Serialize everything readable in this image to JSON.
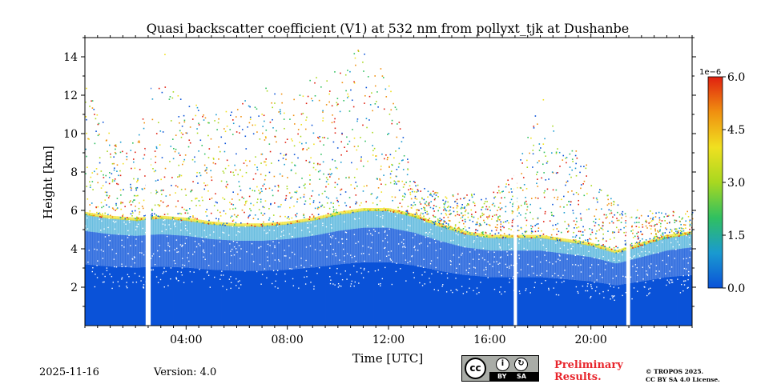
{
  "chart_data": {
    "type": "heatmap",
    "title": "Quasi backscatter coefficient (V1) at 532 nm from pollyxt_tjk at Dushanbe",
    "xlabel": "Time [UTC]",
    "ylabel": "Height [km]",
    "xlim_hours": [
      0,
      24
    ],
    "ylim_km": [
      0,
      15
    ],
    "x_ticks": [
      {
        "hour": 4,
        "label": "04:00"
      },
      {
        "hour": 8,
        "label": "08:00"
      },
      {
        "hour": 12,
        "label": "12:00"
      },
      {
        "hour": 16,
        "label": "16:00"
      },
      {
        "hour": 20,
        "label": "20:00"
      }
    ],
    "y_ticks": [
      {
        "value": 2,
        "label": "2"
      },
      {
        "value": 4,
        "label": "4"
      },
      {
        "value": 6,
        "label": "6"
      },
      {
        "value": 8,
        "label": "8"
      },
      {
        "value": 10,
        "label": "10"
      },
      {
        "value": 12,
        "label": "12"
      },
      {
        "value": 14,
        "label": "14"
      }
    ],
    "colorbar": {
      "multiplier": "1e−6",
      "range": [
        0.0,
        6.0
      ],
      "ticks": [
        {
          "value": 0.0,
          "label": "0.0"
        },
        {
          "value": 1.5,
          "label": "1.5"
        },
        {
          "value": 3.0,
          "label": "3.0"
        },
        {
          "value": 4.5,
          "label": "4.5"
        },
        {
          "value": 6.0,
          "label": "6.0"
        }
      ],
      "colors": [
        "#0a52d8",
        "#1a9ad0",
        "#30c060",
        "#a8d820",
        "#f0e020",
        "#f09010",
        "#e02010"
      ]
    },
    "data_gaps_hours": [
      {
        "start": 2.4,
        "end": 2.6
      },
      {
        "start": 16.95,
        "end": 17.08
      },
      {
        "start": 21.4,
        "end": 21.55
      }
    ],
    "boundary_layer_top_km": [
      {
        "hour": 0.0,
        "value": 5.8
      },
      {
        "hour": 1.0,
        "value": 5.6
      },
      {
        "hour": 2.0,
        "value": 5.5
      },
      {
        "hour": 3.0,
        "value": 5.6
      },
      {
        "hour": 4.0,
        "value": 5.5
      },
      {
        "hour": 5.0,
        "value": 5.3
      },
      {
        "hour": 6.0,
        "value": 5.2
      },
      {
        "hour": 7.0,
        "value": 5.2
      },
      {
        "hour": 8.0,
        "value": 5.3
      },
      {
        "hour": 9.0,
        "value": 5.5
      },
      {
        "hour": 10.0,
        "value": 5.8
      },
      {
        "hour": 11.0,
        "value": 6.0
      },
      {
        "hour": 12.0,
        "value": 6.0
      },
      {
        "hour": 13.0,
        "value": 5.7
      },
      {
        "hour": 14.0,
        "value": 5.2
      },
      {
        "hour": 15.0,
        "value": 4.8
      },
      {
        "hour": 16.0,
        "value": 4.6
      },
      {
        "hour": 17.0,
        "value": 4.6
      },
      {
        "hour": 18.0,
        "value": 4.6
      },
      {
        "hour": 19.0,
        "value": 4.4
      },
      {
        "hour": 20.0,
        "value": 4.2
      },
      {
        "hour": 21.0,
        "value": 3.8
      },
      {
        "hour": 22.0,
        "value": 4.2
      },
      {
        "hour": 23.0,
        "value": 4.6
      },
      {
        "hour": 24.0,
        "value": 4.8
      }
    ],
    "aerosol_plume_tops_km": [
      {
        "hour": 0.0,
        "value": 12.5
      },
      {
        "hour": 1.0,
        "value": 10.0
      },
      {
        "hour": 2.0,
        "value": 9.5
      },
      {
        "hour": 3.0,
        "value": 14.5
      },
      {
        "hour": 4.0,
        "value": 12.0
      },
      {
        "hour": 5.0,
        "value": 11.0
      },
      {
        "hour": 6.0,
        "value": 11.5
      },
      {
        "hour": 7.0,
        "value": 12.5
      },
      {
        "hour": 8.0,
        "value": 12.0
      },
      {
        "hour": 9.0,
        "value": 13.0
      },
      {
        "hour": 10.0,
        "value": 13.5
      },
      {
        "hour": 11.0,
        "value": 14.8
      },
      {
        "hour": 12.0,
        "value": 13.0
      },
      {
        "hour": 13.0,
        "value": 7.5
      },
      {
        "hour": 14.0,
        "value": 7.0
      },
      {
        "hour": 15.0,
        "value": 7.0
      },
      {
        "hour": 16.0,
        "value": 7.0
      },
      {
        "hour": 17.0,
        "value": 8.0
      },
      {
        "hour": 18.0,
        "value": 12.0
      },
      {
        "hour": 19.0,
        "value": 10.0
      },
      {
        "hour": 20.0,
        "value": 8.0
      },
      {
        "hour": 21.0,
        "value": 6.5
      },
      {
        "hour": 22.0,
        "value": 6.0
      },
      {
        "hour": 23.0,
        "value": 6.0
      },
      {
        "hour": 24.0,
        "value": 6.0
      }
    ]
  },
  "footer": {
    "date": "2025-11-16",
    "version": "Version: 4.0",
    "cc_badge": {
      "cc": "cc",
      "by": "BY",
      "sa": "SA",
      "by_icon": "person-icon",
      "sa_icon": "share-alike-icon"
    },
    "preliminary_line1": "Preliminary",
    "preliminary_line2": "Results.",
    "copyright_line1": "© TROPOS 2025.",
    "copyright_line2": "CC BY SA 4.0 License.",
    "preliminary_color": "#e8262d"
  }
}
